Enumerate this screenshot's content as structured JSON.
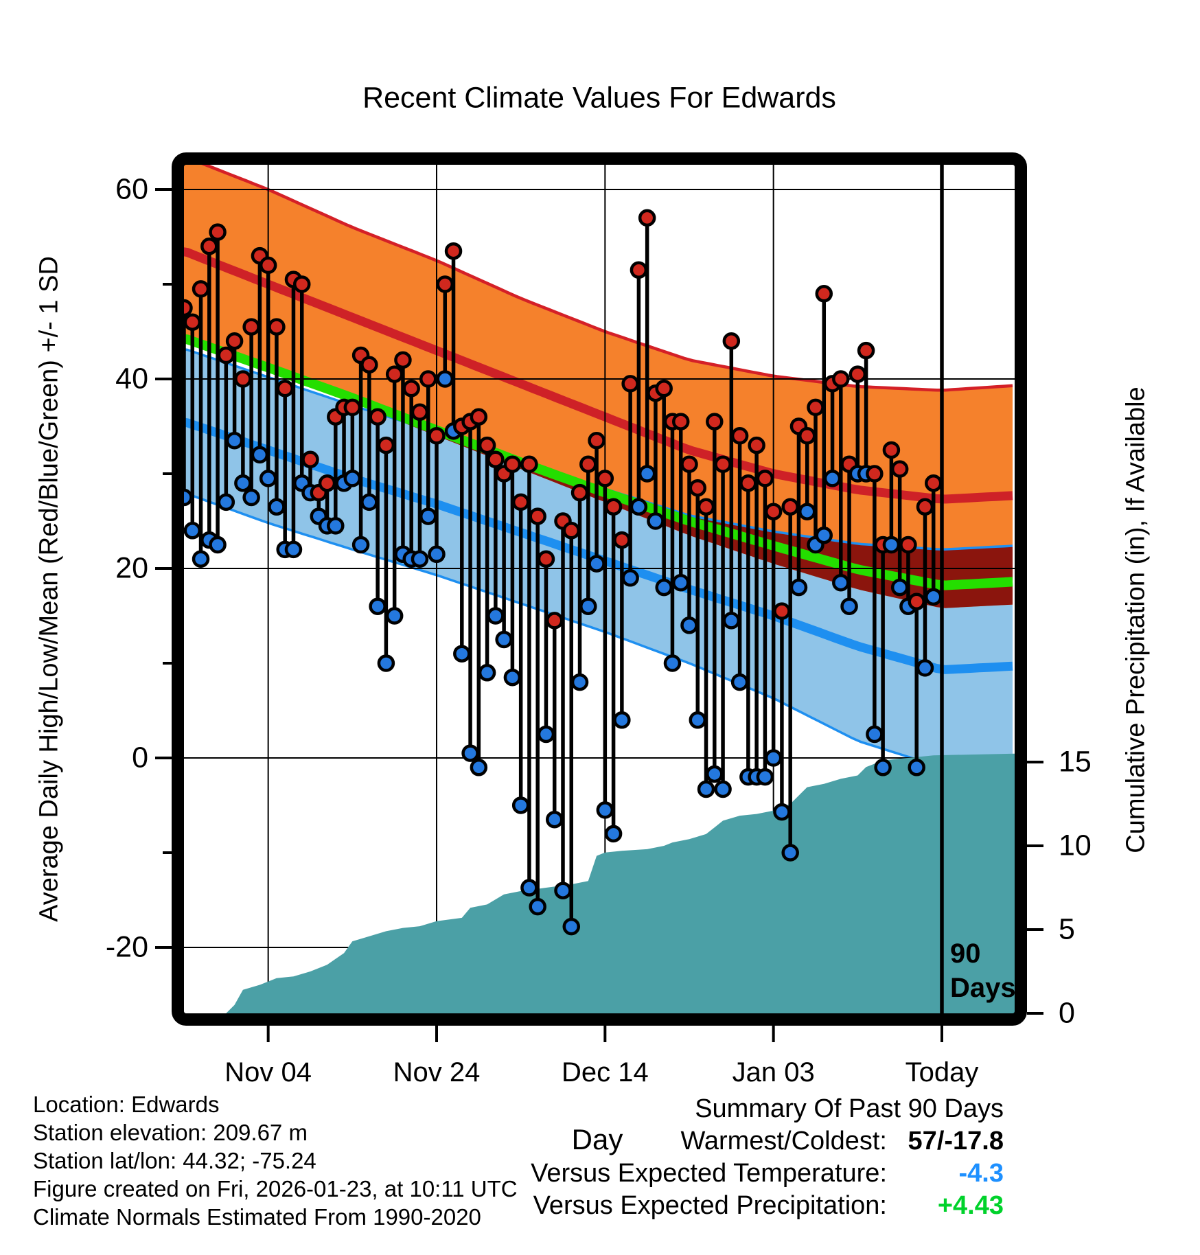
{
  "title": "Recent Climate Values For Edwards",
  "axes": {
    "y_left_label": "Average Daily High/Low/Mean (Red/Blue/Green) +/- 1 SD",
    "y_right_label": "Cumulative Precipitation (in), If Available",
    "x_label": "Day",
    "x_ticks": [
      {
        "day": 10,
        "label": "Nov 04"
      },
      {
        "day": 30,
        "label": "Nov 24"
      },
      {
        "day": 50,
        "label": "Dec 14"
      },
      {
        "day": 70,
        "label": "Jan 03"
      },
      {
        "day": 90,
        "label": "Today"
      }
    ],
    "y_left_ticks": [
      60,
      40,
      20,
      0,
      -20
    ],
    "y_left_minor_ticks": [
      50,
      30,
      10,
      -10
    ],
    "y_right_ticks": [
      15,
      10,
      5,
      0
    ],
    "y_left_range": [
      -27,
      62.6
    ],
    "y_right_range": [
      0,
      18.2
    ],
    "grid": true
  },
  "annotations": {
    "today_line_day": 90,
    "today_label_line1": "90",
    "today_label_line2": "Days"
  },
  "chart_data": {
    "type": "composite",
    "description": "Daily high/low temperature stems with climate-normal bands (high/low mean +/- 1 SD), daily mean normal line, and cumulative precipitation area",
    "x_axis": {
      "unit": "day",
      "day0_date": "2025-10-25",
      "today_index": 90,
      "days_shown": 90
    },
    "daily": {
      "highs": [
        47.5,
        46,
        49.5,
        54,
        55.5,
        42.5,
        44,
        40,
        45.5,
        53,
        52,
        45.5,
        39,
        50.5,
        50,
        31.5,
        28,
        29,
        36,
        37,
        37,
        42.5,
        41.5,
        36,
        33,
        40.5,
        42,
        39,
        36.5,
        40,
        34,
        50,
        53.5,
        35,
        35.5,
        36,
        33,
        31.5,
        30,
        31,
        27,
        31,
        25.5,
        21,
        14.5,
        25,
        24,
        28,
        31,
        33.5,
        29.5,
        26.5,
        23,
        39.5,
        51.5,
        57,
        38.5,
        39,
        35.5,
        35.5,
        31,
        28.5,
        26.5,
        35.5,
        31,
        44,
        34,
        29,
        33,
        29.5,
        26,
        15.5,
        26.5,
        35,
        34,
        37,
        49,
        39.5,
        40,
        31,
        40.5,
        43,
        30,
        22.5,
        32.5,
        30.5,
        22.5,
        16.5,
        26.5,
        29
      ],
      "lows": [
        27.5,
        24,
        21,
        23,
        22.5,
        27,
        33.5,
        29,
        27.5,
        32,
        29.5,
        26.5,
        22,
        22,
        29,
        28,
        25.5,
        24.5,
        24.5,
        29,
        29.5,
        22.5,
        27,
        16,
        10,
        15,
        21.5,
        21,
        21,
        25.5,
        21.5,
        40,
        34.5,
        11,
        0.5,
        -1,
        9,
        15,
        12.5,
        8.5,
        -5,
        -13.7,
        -15.7,
        2.5,
        -6.5,
        -14,
        -17.8,
        8,
        16,
        20.5,
        -5.5,
        -8,
        4,
        19,
        26.5,
        30,
        25,
        18,
        10,
        18.5,
        14,
        4,
        -3.3,
        -1.7,
        -3.3,
        14.5,
        8,
        -2,
        -2,
        -2,
        0,
        -5.7,
        -10,
        18,
        26,
        22.5,
        23.5,
        29.5,
        18.5,
        16,
        30,
        30,
        2.5,
        -1,
        22.5,
        18,
        16,
        -1,
        9.5,
        17
      ],
      "high_dot_color": "#D0281E",
      "low_dot_color": "#2478DE"
    },
    "normals": {
      "t": [
        0,
        10,
        20,
        30,
        40,
        50,
        60,
        70,
        80,
        90,
        98.6
      ],
      "high_plus_sd": [
        63.5,
        60,
        56,
        52.5,
        48.5,
        45,
        42,
        40.3,
        39.2,
        38.8,
        39.3
      ],
      "avg_high": [
        53.5,
        50,
        46.5,
        43,
        39.5,
        36,
        32.5,
        30,
        28.3,
        27.3,
        27.7
      ],
      "high_minus_sd": [
        44.5,
        41,
        37.5,
        34,
        30.5,
        27,
        23.5,
        20.5,
        17.8,
        15.8,
        16.2
      ],
      "mean": [
        44.3,
        41.2,
        38,
        34.6,
        31.2,
        28,
        25,
        22.4,
        19.9,
        18.2,
        18.6
      ],
      "low_plus_sd": [
        43.2,
        40.2,
        37.2,
        34.4,
        31.4,
        28.4,
        25.6,
        23.9,
        22.6,
        22,
        22.4
      ],
      "avg_low": [
        35.5,
        32.5,
        29.5,
        26.8,
        23.8,
        20.8,
        17.8,
        15,
        11.8,
        9.3,
        9.7
      ],
      "low_minus_sd": [
        28,
        24.8,
        22,
        19.3,
        16.3,
        13.3,
        10,
        6.3,
        1.8,
        -1,
        -0.6
      ]
    },
    "precip_cumulative": [
      [
        5,
        0
      ],
      [
        6,
        0.5
      ],
      [
        7,
        1.4
      ],
      [
        9,
        1.7
      ],
      [
        10,
        1.9
      ],
      [
        11,
        2.1
      ],
      [
        13,
        2.2
      ],
      [
        15,
        2.5
      ],
      [
        17,
        2.9
      ],
      [
        19,
        3.6
      ],
      [
        20,
        4.3
      ],
      [
        22,
        4.6
      ],
      [
        24,
        4.9
      ],
      [
        26,
        5.1
      ],
      [
        28,
        5.2
      ],
      [
        30,
        5.5
      ],
      [
        33,
        5.7
      ],
      [
        34,
        6.3
      ],
      [
        36,
        6.5
      ],
      [
        38,
        7.1
      ],
      [
        40,
        7.3
      ],
      [
        43,
        7.5
      ],
      [
        46,
        7.7
      ],
      [
        48,
        7.9
      ],
      [
        49,
        9.4
      ],
      [
        50,
        9.6
      ],
      [
        52,
        9.7
      ],
      [
        55,
        9.8
      ],
      [
        57,
        10
      ],
      [
        58,
        10.2
      ],
      [
        60,
        10.4
      ],
      [
        62,
        10.7
      ],
      [
        63,
        11.1
      ],
      [
        64,
        11.5
      ],
      [
        66,
        11.8
      ],
      [
        68,
        11.9
      ],
      [
        70,
        12.1
      ],
      [
        72,
        12.5
      ],
      [
        73,
        13
      ],
      [
        74,
        13.5
      ],
      [
        76,
        13.7
      ],
      [
        78,
        14
      ],
      [
        80,
        14.2
      ],
      [
        81,
        14.7
      ],
      [
        83,
        15.1
      ],
      [
        85,
        15.2
      ],
      [
        87,
        15.3
      ],
      [
        89,
        15.4
      ],
      [
        98.6,
        15.5
      ]
    ]
  },
  "info": {
    "lines": [
      "Location: Edwards",
      "Station elevation: 209.67 m",
      "Station lat/lon: 44.32; -75.24",
      "Figure created on Fri, 2026-01-23, at 10:11 UTC",
      "Climate Normals Estimated From 1990-2020"
    ]
  },
  "summary": {
    "title": "Summary Of Past 90 Days",
    "rows": [
      {
        "label": "Warmest/Coldest:",
        "value": "57/-17.8",
        "color": "#000000"
      },
      {
        "label": "Versus Expected Temperature:",
        "value": "-4.3",
        "color": "#1E90FF"
      },
      {
        "label": "Versus Expected Precipitation:",
        "value": "+4.43",
        "color": "#00D22B"
      }
    ]
  },
  "colors": {
    "high_band": "#F5812C",
    "high_band_edge": "#D42027",
    "avg_high_line": "#CE2127",
    "overlap_band": "#8B150D",
    "mean_line": "#24DE00",
    "low_band": "#8FC4E8",
    "low_band_edge": "#1E8FF0",
    "avg_low_line": "#1E8FF0",
    "precip_fill": "#4BA0A6",
    "stem": "#000000",
    "grid": "#000000"
  }
}
